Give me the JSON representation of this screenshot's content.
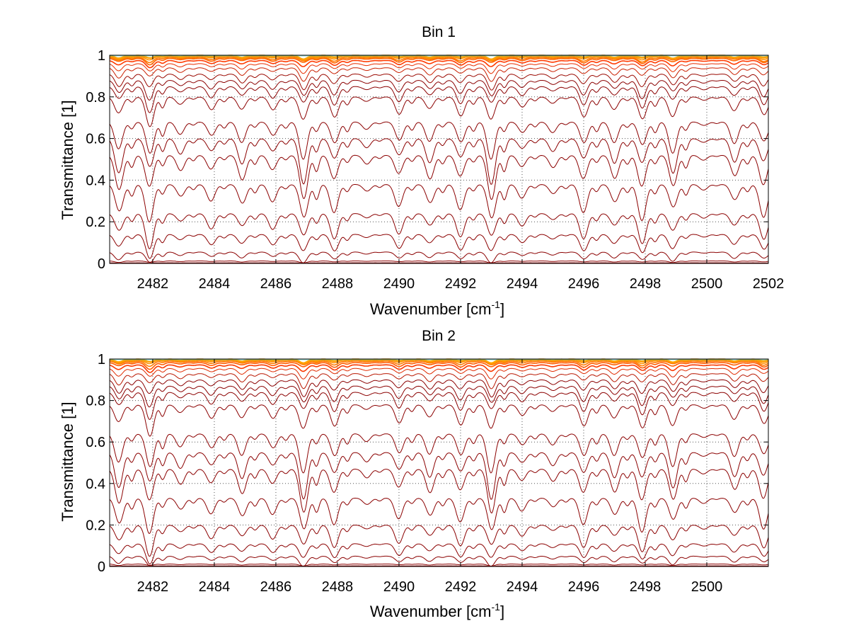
{
  "chart_data": [
    {
      "type": "line",
      "title": "Bin 1",
      "xlabel": "Wavenumber [cm",
      "xlabel_sup": "-1",
      "xlabel_end": "]",
      "ylabel": "Transmittance [1]",
      "xlim": [
        2480.6,
        2502.0
      ],
      "ylim": [
        0,
        1
      ],
      "xticks": [
        2482,
        2484,
        2486,
        2488,
        2490,
        2492,
        2494,
        2496,
        2498,
        2500,
        2502
      ],
      "xtick_labels": [
        "2482",
        "2484",
        "2486",
        "2488",
        "2490",
        "2492",
        "2494",
        "2496",
        "2498",
        "2500",
        "2502"
      ],
      "yticks": [
        0,
        0.2,
        0.4,
        0.6,
        0.8,
        1
      ],
      "ytick_labels": [
        "0",
        "0.2",
        "0.4",
        "0.6",
        "0.8",
        "1"
      ],
      "grid": true,
      "grid_style": "dotted",
      "series_count": 22,
      "series_baselines": [
        0.0,
        0.003,
        0.012,
        0.055,
        0.14,
        0.24,
        0.38,
        0.52,
        0.6,
        0.68,
        0.8,
        0.85,
        0.88,
        0.91,
        0.94,
        0.96,
        0.975,
        0.985,
        0.99,
        0.995,
        0.998,
        1.0
      ],
      "line_dip_centers": [
        2480.9,
        2481.9,
        2482.9,
        2483.9,
        2484.9,
        2485.9,
        2486.9,
        2487.9,
        2488.95,
        2490.0,
        2491.0,
        2492.0,
        2493.0,
        2494.0,
        2495.0,
        2496.0,
        2497.0,
        2497.9,
        2498.9,
        2499.9,
        2500.9,
        2501.85
      ]
    },
    {
      "type": "line",
      "title": "Bin 2",
      "xlabel": "Wavenumber [cm",
      "xlabel_sup": "-1",
      "xlabel_end": "]",
      "ylabel": "Transmittance [1]",
      "xlim": [
        2480.6,
        2502.0
      ],
      "ylim": [
        0,
        1
      ],
      "xticks": [
        2482,
        2484,
        2486,
        2488,
        2490,
        2492,
        2494,
        2496,
        2498,
        2500
      ],
      "xtick_labels": [
        "2482",
        "2484",
        "2486",
        "2488",
        "2490",
        "2492",
        "2494",
        "2496",
        "2498",
        "2500"
      ],
      "yticks": [
        0,
        0.2,
        0.4,
        0.6,
        0.8,
        1
      ],
      "ytick_labels": [
        "0",
        "0.2",
        "0.4",
        "0.6",
        "0.8",
        "1"
      ],
      "grid": true,
      "grid_style": "dotted",
      "series_count": 22,
      "series_baselines": [
        0.0,
        0.003,
        0.012,
        0.05,
        0.11,
        0.2,
        0.33,
        0.47,
        0.55,
        0.64,
        0.78,
        0.84,
        0.87,
        0.9,
        0.93,
        0.955,
        0.972,
        0.983,
        0.99,
        0.995,
        0.998,
        1.0
      ],
      "line_dip_centers": [
        2480.9,
        2481.9,
        2482.9,
        2483.9,
        2484.9,
        2485.9,
        2486.9,
        2487.9,
        2488.95,
        2490.0,
        2491.0,
        2492.0,
        2493.0,
        2494.0,
        2495.0,
        2496.0,
        2497.0,
        2497.9,
        2498.9,
        2499.9,
        2500.9,
        2501.85
      ]
    }
  ],
  "colors": {
    "low_transmittance": "#8b0000",
    "high_transmittance": "#ff3a00",
    "near_one": "#ffa500",
    "accent_teal": "#3cb8a8",
    "accent_green": "#9acd32"
  }
}
